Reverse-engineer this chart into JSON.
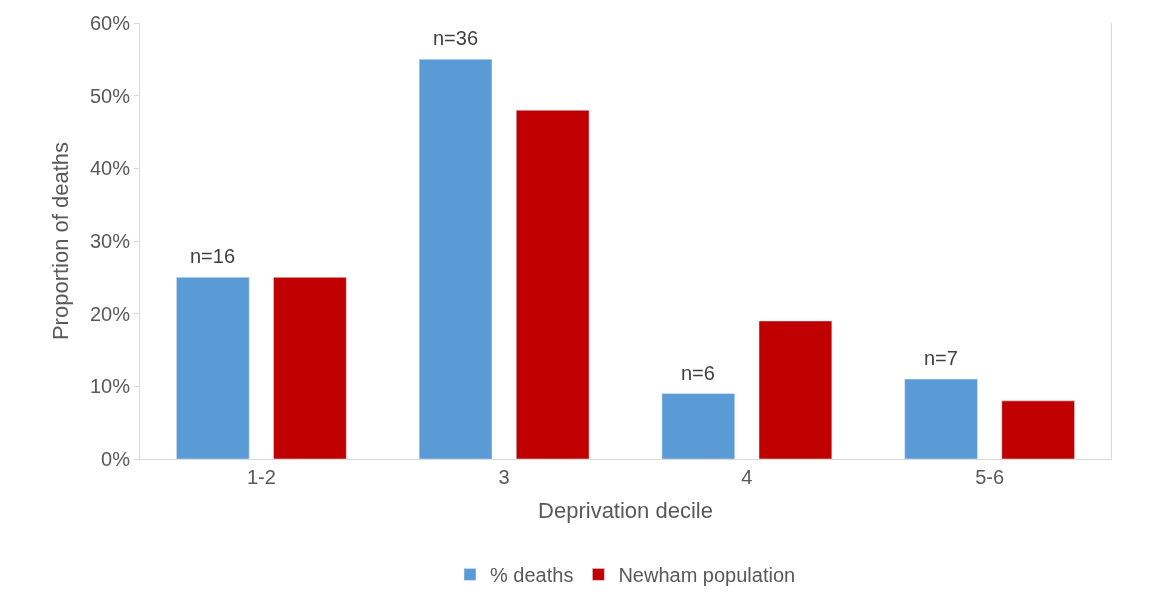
{
  "chart_data": {
    "type": "bar",
    "xlabel": "Deprivation decile",
    "ylabel": "Proportion of deaths",
    "categories": [
      "1-2",
      "3",
      "4",
      "5-6"
    ],
    "series": [
      {
        "name": "% deaths",
        "color": "#5b9bd5",
        "values": [
          25,
          55,
          9,
          11
        ]
      },
      {
        "name": "Newham population",
        "color": "#c00000",
        "values": [
          25,
          48,
          19,
          8
        ]
      }
    ],
    "ylim": [
      0,
      60
    ],
    "yticks": [
      {
        "value": 0,
        "label": "0%"
      },
      {
        "value": 10,
        "label": "10%"
      },
      {
        "value": 20,
        "label": "20%"
      },
      {
        "value": 30,
        "label": "30%"
      },
      {
        "value": 40,
        "label": "40%"
      },
      {
        "value": 50,
        "label": "50%"
      },
      {
        "value": 60,
        "label": "60%"
      }
    ],
    "annotations": [
      "n=16",
      "n=36",
      "n=6",
      "n=7"
    ],
    "legend": "bottom"
  }
}
